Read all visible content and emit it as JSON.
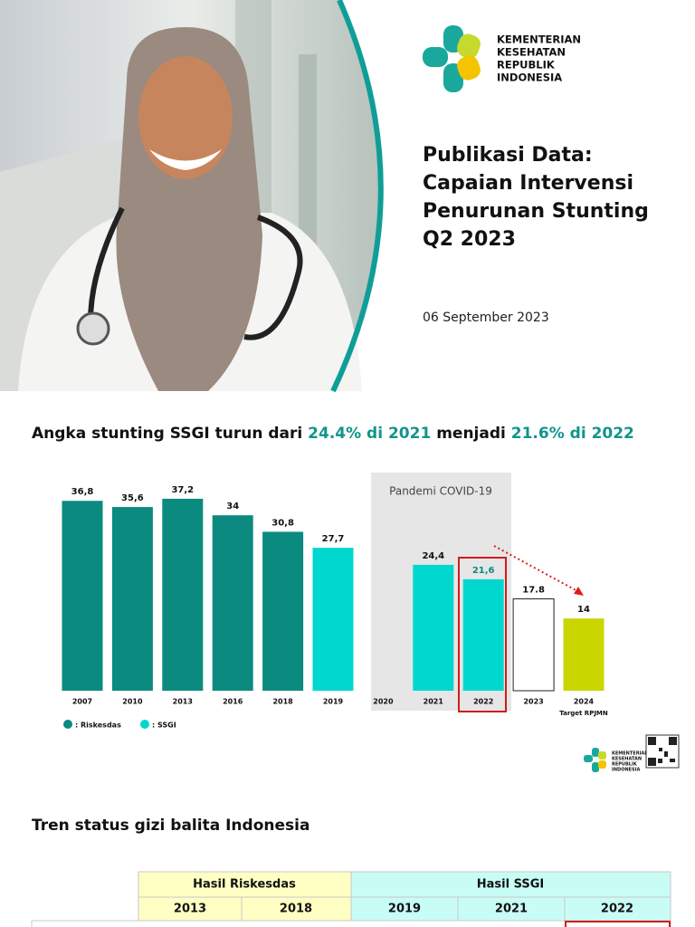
{
  "header": {
    "logo_lines": [
      "KEMENTERIAN",
      "KESEHATAN",
      "REPUBLIK",
      "INDONESIA"
    ],
    "title_lines": [
      "Publikasi Data:",
      "Capaian Intervensi",
      "Penurunan Stunting",
      "Q2 2023"
    ],
    "date": "06 September 2023"
  },
  "chart_heading": [
    "Angka stunting SSGI turun dari ",
    "24.4% di 2021",
    " menjadi ",
    "21.6% di 2022"
  ],
  "chart_data": {
    "type": "bar",
    "categories": [
      "2007",
      "2010",
      "2013",
      "2016",
      "2018",
      "2019",
      "2020",
      "2021",
      "2022",
      "2023",
      "2024"
    ],
    "values": [
      36.8,
      35.6,
      37.2,
      34,
      30.8,
      27.7,
      null,
      24.4,
      21.6,
      17.8,
      14
    ],
    "value_labels": [
      "36,8",
      "35,6",
      "37,2",
      "34",
      "30,8",
      "27,7",
      null,
      "24,4",
      "21,6",
      "17.8",
      "14"
    ],
    "colors": [
      "#0b8a80",
      "#0b8a80",
      "#0b8a80",
      "#0b8a80",
      "#0b8a80",
      "#00d7cf",
      null,
      "#00d7cf",
      "#00d7cf",
      "#ffffff",
      "#c9d600"
    ],
    "ylim": [
      0,
      40
    ],
    "grid": false,
    "annotations": [
      "Pandemi COVID-19",
      "Target RPJMN"
    ],
    "legend": [
      {
        "label": ": Riskesdas",
        "color": "#0b8a80"
      },
      {
        "label": ": SSGI",
        "color": "#00d7cf"
      }
    ]
  },
  "section_title": "Tren status gizi balita Indonesia",
  "table": {
    "groups": [
      "Hasil Riskesdas",
      "Hasil SSGI"
    ],
    "years": [
      "2013",
      "2018",
      "2019",
      "2021",
      "2022"
    ]
  }
}
